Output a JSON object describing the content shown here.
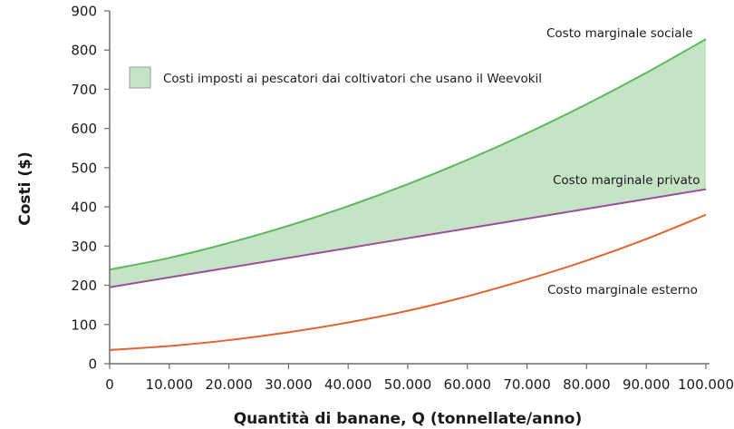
{
  "chart_data": {
    "type": "line",
    "title": "",
    "xlabel": "Quantità di banane, Q (tonnellate/anno)",
    "ylabel": "Costi ($)",
    "xlim": [
      0,
      100000
    ],
    "ylim": [
      0,
      900
    ],
    "grid": false,
    "x_ticks": [
      "0",
      "10.000",
      "20.000",
      "30.000",
      "40.000",
      "50.000",
      "60.000",
      "70.000",
      "80.000",
      "90.000",
      "100.000"
    ],
    "y_ticks": [
      "0",
      "100",
      "200",
      "300",
      "400",
      "500",
      "600",
      "700",
      "800",
      "900"
    ],
    "x": [
      0,
      10000,
      20000,
      30000,
      40000,
      50000,
      60000,
      70000,
      80000,
      90000,
      100000
    ],
    "series": [
      {
        "name": "Costo marginale sociale",
        "color": "#5cb85c",
        "values": [
          240,
          270,
          308,
          352,
          402,
          458,
          520,
          588,
          662,
          742,
          828
        ]
      },
      {
        "name": "Costo marginale privato",
        "color": "#9b4f9b",
        "values": [
          195,
          220,
          245,
          270,
          295,
          320,
          345,
          370,
          395,
          420,
          445
        ]
      },
      {
        "name": "Costo marginale esterno",
        "color": "#e3622f",
        "values": [
          35,
          45,
          60,
          80,
          105,
          135,
          172,
          215,
          263,
          318,
          380
        ]
      }
    ],
    "shaded_region": {
      "between": [
        "Costo marginale sociale",
        "Costo marginale privato"
      ],
      "color": "#c5e3c5",
      "legend": "Costi imposti ai pescatori dai coltivatori che usano il Weevokil"
    },
    "legend_position": "upper left",
    "annotations": [
      {
        "text": "Costo marginale sociale",
        "near_series": "Costo marginale sociale"
      },
      {
        "text": "Costo marginale privato",
        "near_series": "Costo marginale privato"
      },
      {
        "text": "Costo marginale esterno",
        "near_series": "Costo marginale esterno"
      }
    ]
  },
  "labels": {
    "social": "Costo marginale sociale",
    "private": "Costo marginale privato",
    "external": "Costo marginale esterno",
    "legend": "Costi imposti ai pescatori dai coltivatori che usano il Weevokil",
    "xlabel": "Quantità di banane, Q (tonnellate/anno)",
    "ylabel": "Costi ($)"
  }
}
